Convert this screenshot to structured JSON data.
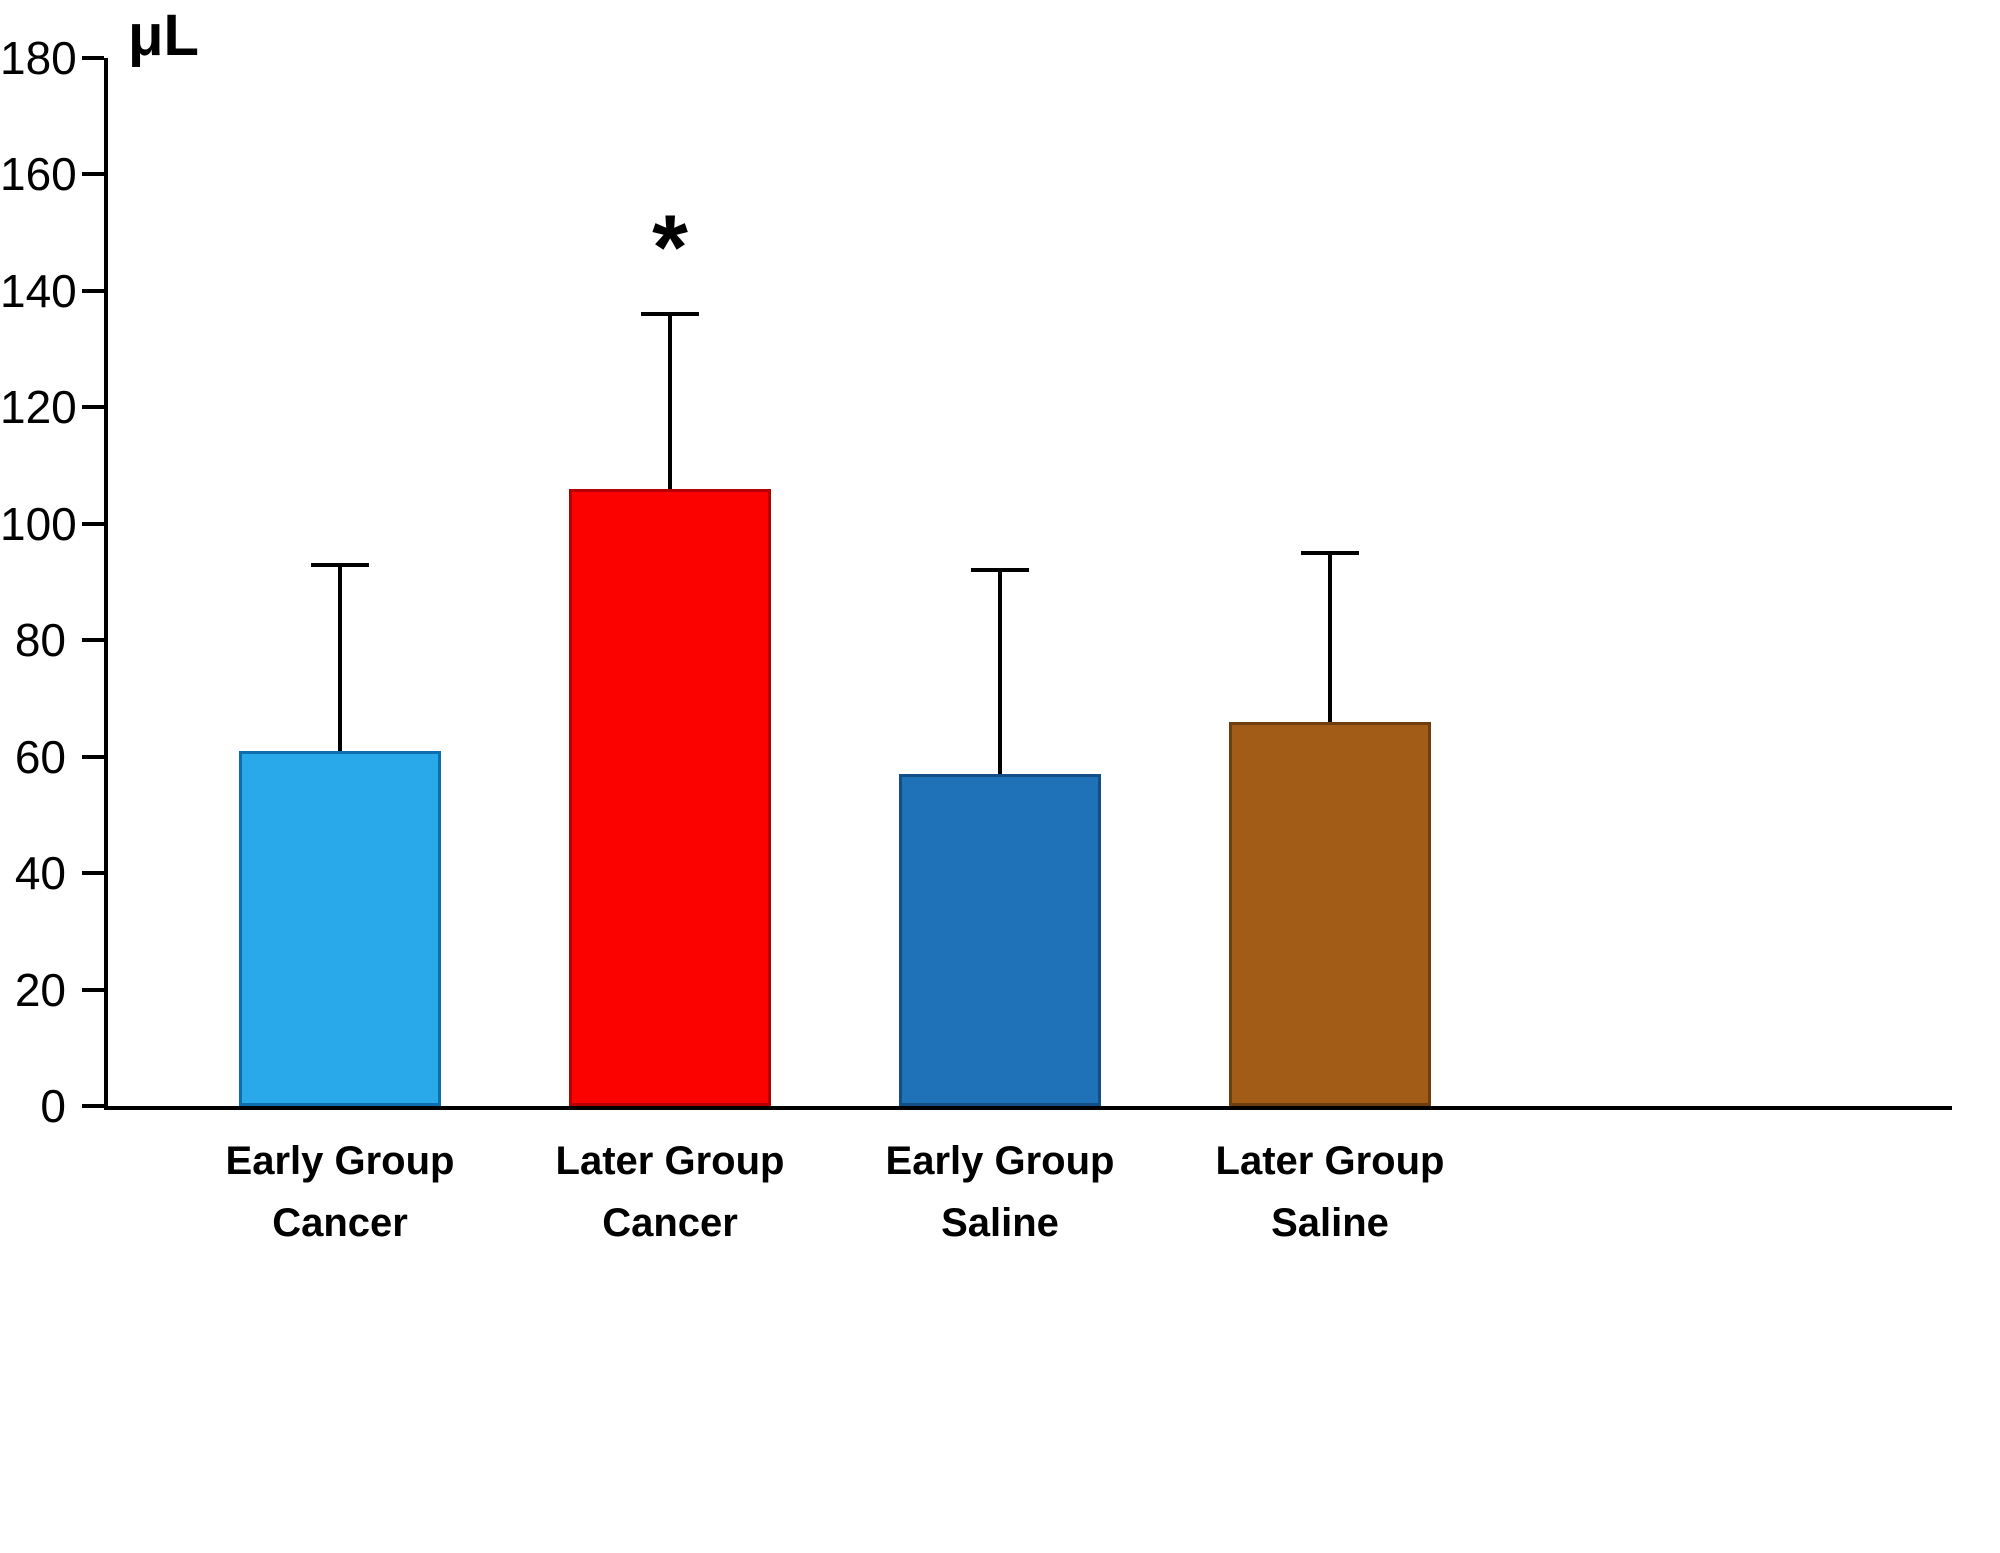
{
  "chart_data": {
    "type": "bar",
    "title": "",
    "xlabel": "",
    "ylabel": "μL",
    "ylim": [
      0,
      180
    ],
    "yticks": [
      0,
      20,
      40,
      60,
      80,
      100,
      120,
      140,
      160,
      180
    ],
    "grid": false,
    "legend": null,
    "categories": [
      "Early Group\nCancer",
      "Later Group\nCancer",
      "Early Group\nSaline",
      "Later Group\nSaline"
    ],
    "values": [
      61,
      106,
      57,
      66
    ],
    "errors_plus": [
      32,
      30,
      35,
      29
    ],
    "error_bar_tops": [
      93,
      136,
      92,
      95
    ],
    "annotations": [
      {
        "category_index": 1,
        "text": "*"
      }
    ],
    "bar_colors": [
      "#29A9EA",
      "#FB0200",
      "#1F72B8",
      "#A35C17"
    ],
    "bar_border_colors": [
      "#0F6FAE",
      "#B40000",
      "#134E84",
      "#6F3E0E"
    ],
    "axis_color": "#000000"
  }
}
